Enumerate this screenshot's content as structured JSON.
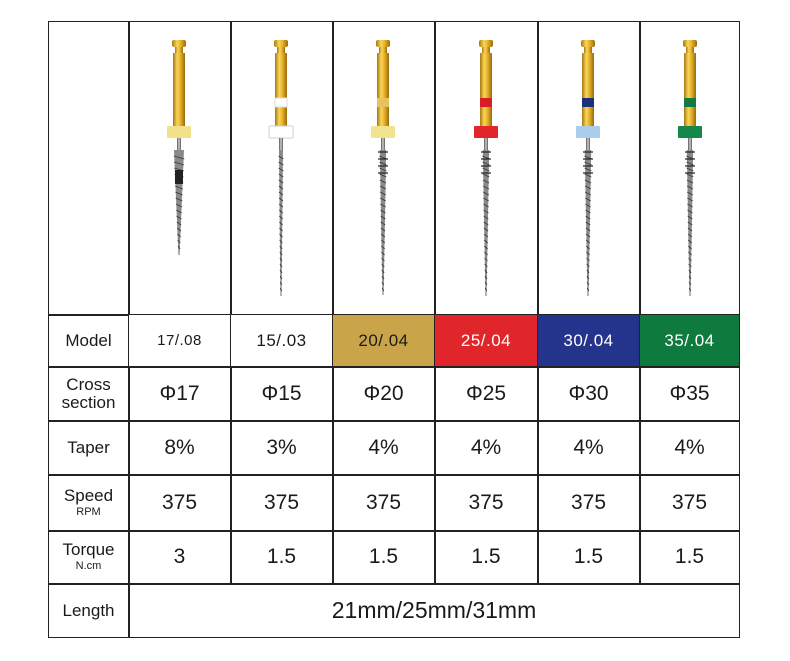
{
  "table": {
    "row_labels": {
      "model": "Model",
      "cross_line1": "Cross",
      "cross_line2": "section",
      "taper": "Taper",
      "speed": "Speed",
      "speed_unit": "RPM",
      "torque": "Torque",
      "torque_unit": "N.cm",
      "length": "Length"
    },
    "columns": [
      {
        "model": "17/.08",
        "cross": "Φ17",
        "taper": "8%",
        "speed": "375",
        "torque": "3",
        "ring_color": "#f3e08a",
        "band_color": "#e8c860",
        "model_bg": "#ffffff",
        "model_fg": "#1a1a1a"
      },
      {
        "model": "15/.03",
        "cross": "Φ15",
        "taper": "3%",
        "speed": "375",
        "torque": "1.5",
        "ring_color": "#ffffff",
        "band_color": "#ffffff",
        "model_bg": "#ffffff",
        "model_fg": "#1a1a1a"
      },
      {
        "model": "20/.04",
        "cross": "Φ20",
        "taper": "4%",
        "speed": "375",
        "torque": "1.5",
        "ring_color": "#f1e48e",
        "band_color": "#e6c45a",
        "model_bg": "#c9a449",
        "model_fg": "#1a1a1a"
      },
      {
        "model": "25/.04",
        "cross": "Φ25",
        "taper": "4%",
        "speed": "375",
        "torque": "1.5",
        "ring_color": "#e0262b",
        "band_color": "#d81e24",
        "model_bg": "#e0262b",
        "model_fg": "#ffffff"
      },
      {
        "model": "30/.04",
        "cross": "Φ30",
        "taper": "4%",
        "speed": "375",
        "torque": "1.5",
        "ring_color": "#a9cdea",
        "band_color": "#1d2f7a",
        "model_bg": "#24348c",
        "model_fg": "#ffffff"
      },
      {
        "model": "35/.04",
        "cross": "Φ35",
        "taper": "4%",
        "speed": "375",
        "torque": "1.5",
        "ring_color": "#15874a",
        "band_color": "#137a42",
        "model_bg": "#0f7a3e",
        "model_fg": "#ffffff"
      }
    ],
    "length_value": "21mm/25mm/31mm"
  }
}
